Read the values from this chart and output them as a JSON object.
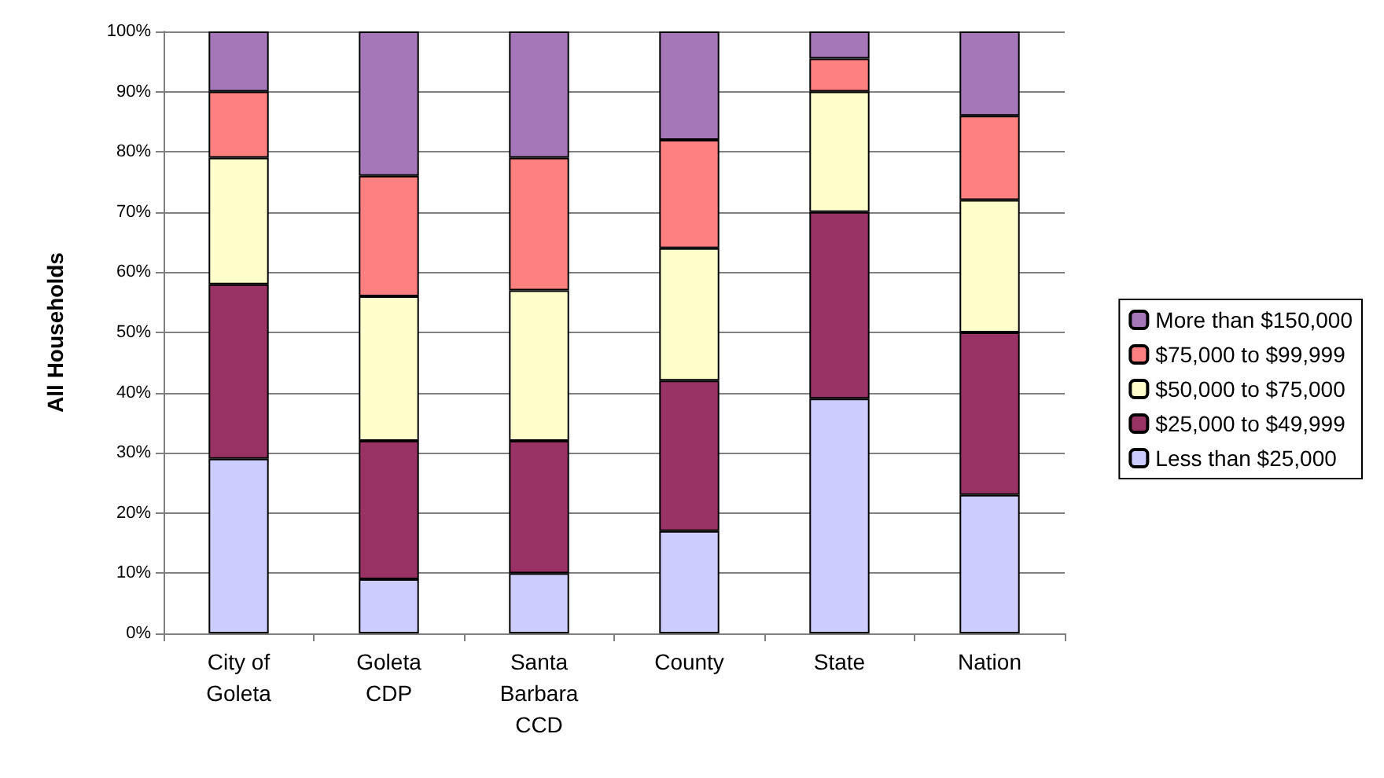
{
  "chart_data": {
    "type": "bar",
    "stacked": true,
    "ylabel": "All Households",
    "categories": [
      "City of\nGoleta",
      "Goleta\nCDP",
      "Santa\nBarbara\nCCD",
      "County",
      "State",
      "Nation"
    ],
    "series": [
      {
        "name": "Less than $25,000",
        "color": "#ccccff",
        "values": [
          29,
          9,
          10,
          17,
          39,
          23
        ]
      },
      {
        "name": "$25,000 to $49,999",
        "color": "#993366",
        "values": [
          29,
          23,
          22,
          25,
          31,
          27
        ]
      },
      {
        "name": "$50,000 to $75,000",
        "color": "#ffffcc",
        "values": [
          21,
          24,
          25,
          22,
          20,
          22
        ]
      },
      {
        "name": "$75,000 to $99,999",
        "color": "#ff8080",
        "values": [
          11,
          20,
          22,
          18,
          5.5,
          14
        ]
      },
      {
        "name": "More than $150,000",
        "color": "#a577b8",
        "values": [
          10,
          24,
          21,
          18,
          4.5,
          14
        ]
      }
    ],
    "ylim": [
      0,
      100
    ],
    "yticks": [
      {
        "value": 0,
        "label": "0%"
      },
      {
        "value": 10,
        "label": "10%"
      },
      {
        "value": 20,
        "label": "20%"
      },
      {
        "value": 30,
        "label": "30%"
      },
      {
        "value": 40,
        "label": "40%"
      },
      {
        "value": 50,
        "label": "50%"
      },
      {
        "value": 60,
        "label": "60%"
      },
      {
        "value": 70,
        "label": "70%"
      },
      {
        "value": 80,
        "label": "80%"
      },
      {
        "value": 90,
        "label": "90%"
      },
      {
        "value": 100,
        "label": "100%"
      }
    ],
    "grid": "y",
    "legend": "right"
  }
}
